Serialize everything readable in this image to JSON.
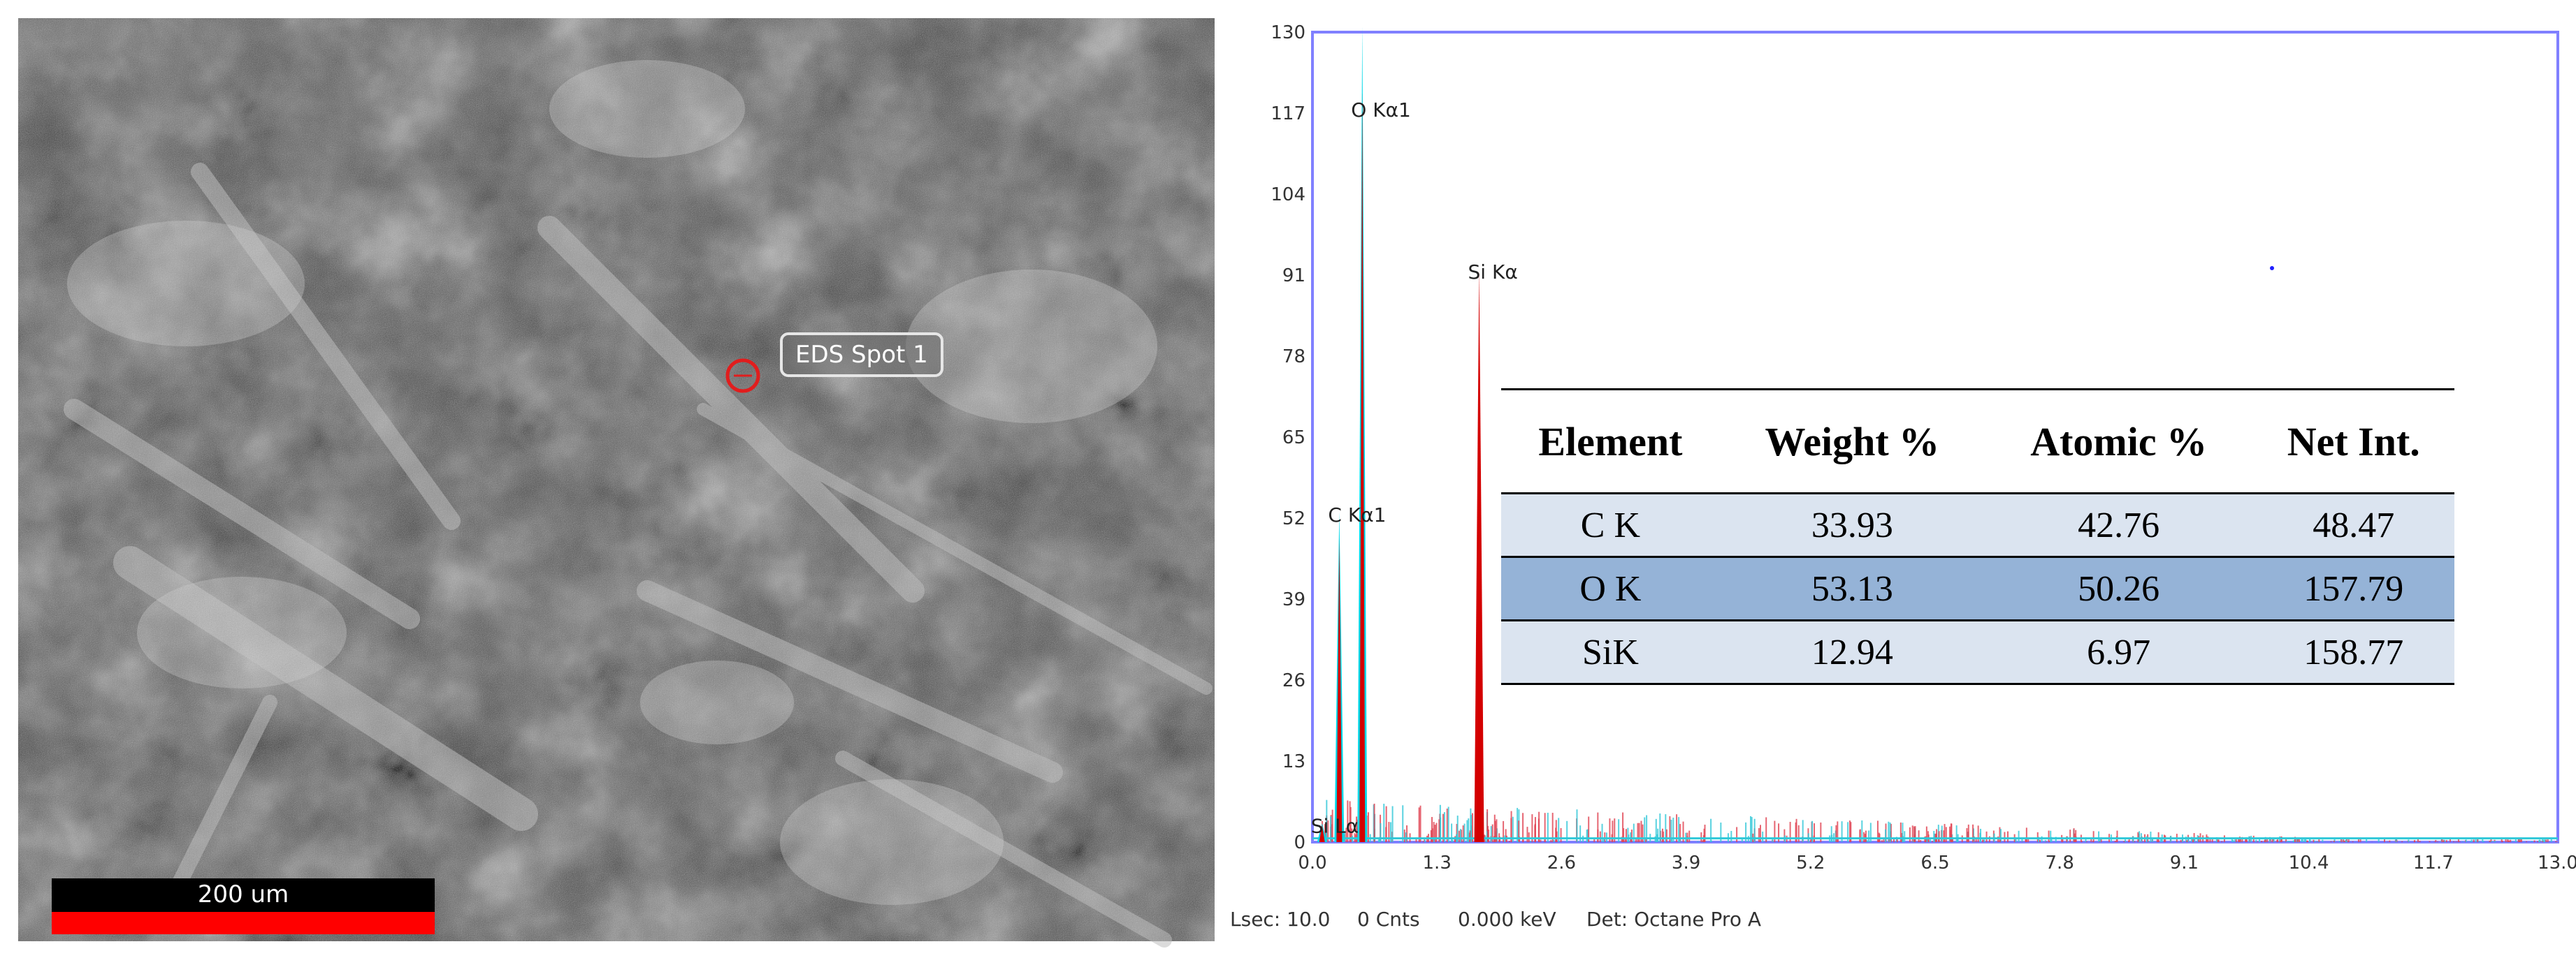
{
  "sem_image": {
    "spot_label": "EDS Spot 1",
    "scale_bar_label": "200 um"
  },
  "chart_data": {
    "type": "line",
    "xlim": [
      0.0,
      13.0
    ],
    "ylim": [
      0,
      130
    ],
    "x_ticks": [
      "0.0",
      "1.3",
      "2.6",
      "3.9",
      "5.2",
      "6.5",
      "7.8",
      "9.1",
      "10.4",
      "11.7",
      "13.0"
    ],
    "y_ticks": [
      "0",
      "13",
      "26",
      "39",
      "52",
      "65",
      "78",
      "91",
      "104",
      "117",
      "130"
    ],
    "peaks": [
      {
        "label": "O Kα1",
        "x": 0.52,
        "y": 131,
        "color": "#00d8e8"
      },
      {
        "label": "C Kα1",
        "x": 0.28,
        "y": 53,
        "color": "#00d8e8"
      },
      {
        "label": "Si Kα",
        "x": 1.74,
        "y": 92,
        "color": "#d40000"
      },
      {
        "label": "Si Lα",
        "x": 0.1,
        "y": 3,
        "color": "#00d8e8"
      }
    ],
    "grid": false,
    "legend": "none"
  },
  "status": {
    "lsec": "Lsec: 10.0",
    "cnts": "0 Cnts",
    "kev": "0.000 keV",
    "detector": "Det: Octane Pro A"
  },
  "table": {
    "headers": [
      "Element",
      "Weight %",
      "Atomic %",
      "Net Int."
    ],
    "rows": [
      [
        "C K",
        "33.93",
        "42.76",
        "48.47"
      ],
      [
        "O K",
        "53.13",
        "50.26",
        "157.79"
      ],
      [
        "SiK",
        "12.94",
        "6.97",
        "158.77"
      ]
    ]
  }
}
